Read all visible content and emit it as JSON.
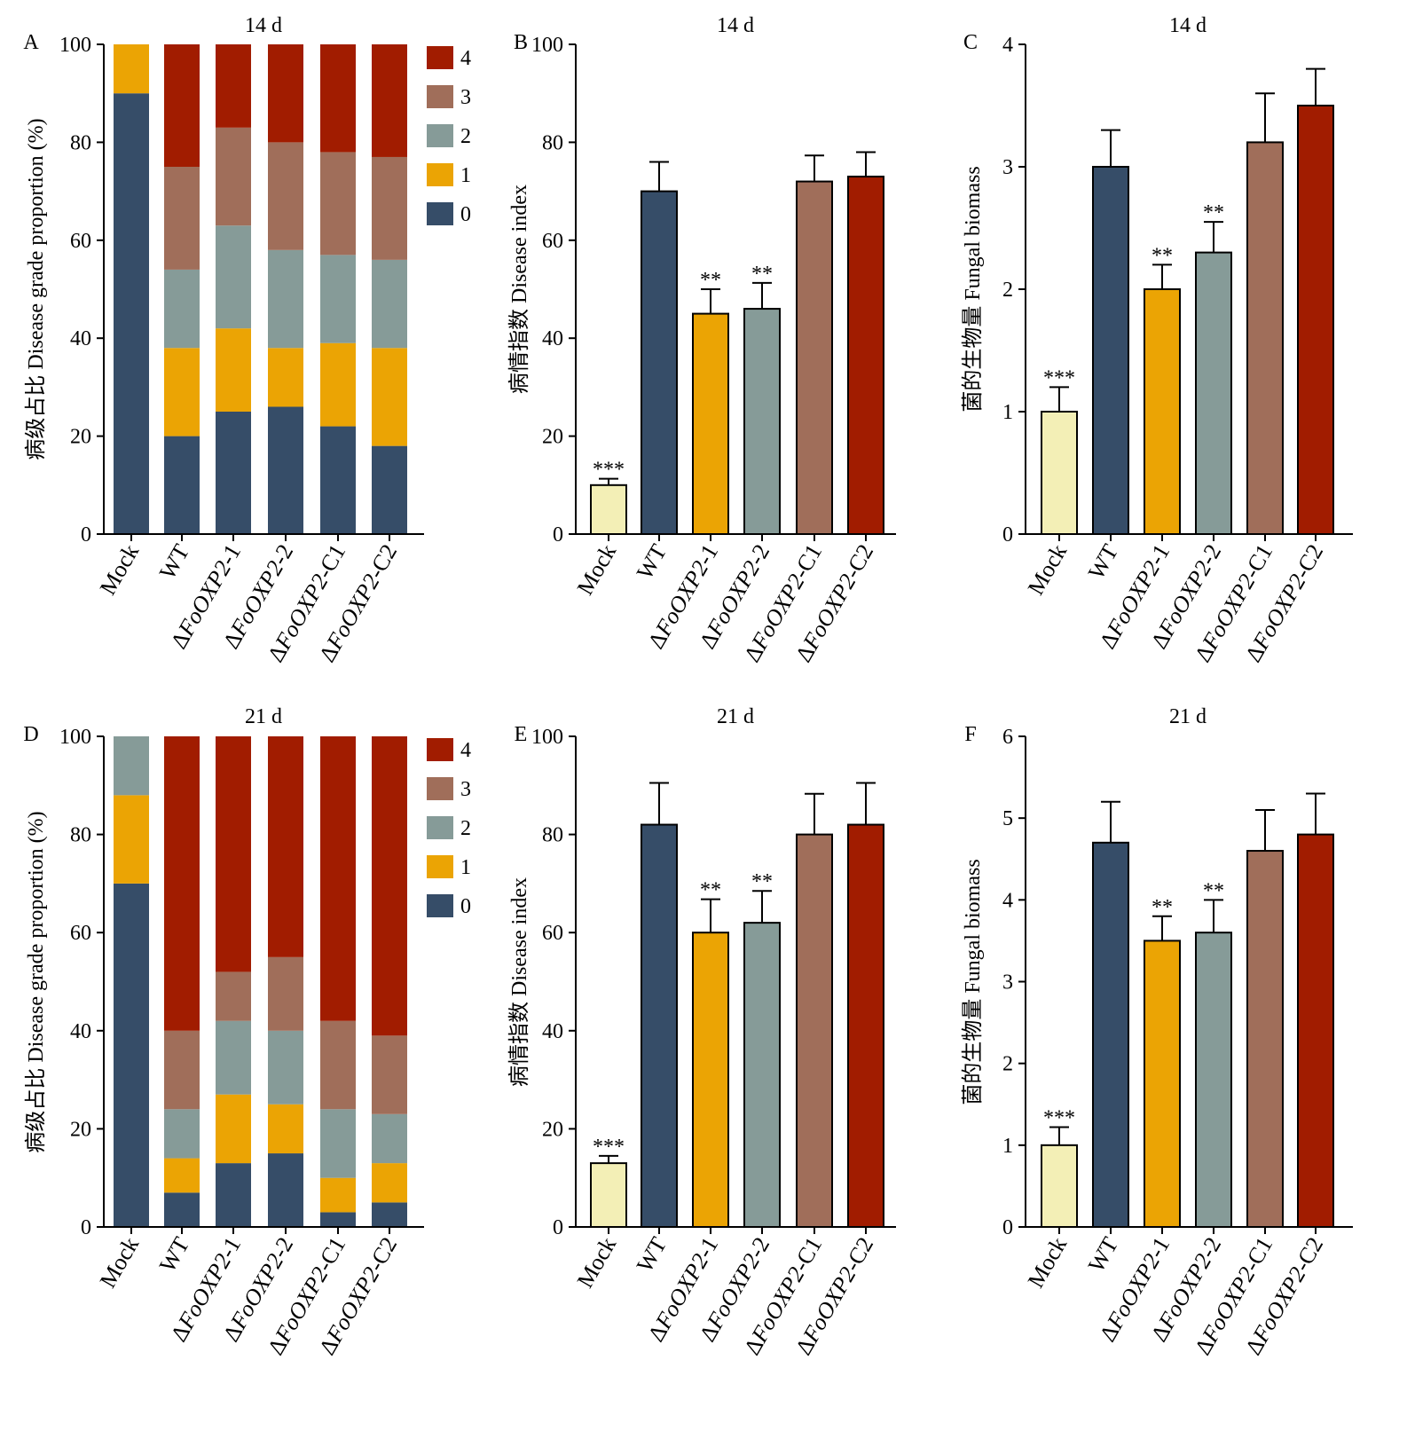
{
  "colors": {
    "grade0": "#364d68",
    "grade1": "#eba404",
    "grade2": "#869b98",
    "grade3": "#a06e5a",
    "grade4": "#a11c00",
    "mock": "#f3efb6",
    "wt": "#364d68",
    "ko1": "#eba404",
    "ko2": "#869b98",
    "c1": "#a06e5a",
    "c2": "#a11c00"
  },
  "chart_data": [
    {
      "id": "A",
      "panel_label": "A",
      "type": "bar",
      "stacked": true,
      "title": "14 d",
      "ylabel": "病级占比 Disease grade proportion (%)",
      "ylim": [
        0,
        100
      ],
      "yticks": [
        0,
        20,
        40,
        60,
        80,
        100
      ],
      "categories": [
        "Mock",
        "WT",
        "ΔFoOXP2-1",
        "ΔFoOXP2-2",
        "ΔFoOXP2-C1",
        "ΔFoOXP2-C2"
      ],
      "legend": [
        "4",
        "3",
        "2",
        "1",
        "0"
      ],
      "legend_position": "top-right",
      "series": [
        {
          "name": "0",
          "values": [
            90,
            20,
            25,
            26,
            22,
            18
          ]
        },
        {
          "name": "1",
          "values": [
            10,
            18,
            17,
            12,
            17,
            20
          ]
        },
        {
          "name": "2",
          "values": [
            0,
            16,
            21,
            20,
            18,
            18
          ]
        },
        {
          "name": "3",
          "values": [
            0,
            21,
            20,
            22,
            21,
            21
          ]
        },
        {
          "name": "4",
          "values": [
            0,
            25,
            17,
            20,
            22,
            23
          ]
        }
      ]
    },
    {
      "id": "B",
      "panel_label": "B",
      "type": "bar",
      "title": "14 d",
      "ylabel": "病情指数 Disease index",
      "ylim": [
        0,
        100
      ],
      "yticks": [
        0,
        20,
        40,
        60,
        80,
        100
      ],
      "categories": [
        "Mock",
        "WT",
        "ΔFoOXP2-1",
        "ΔFoOXP2-2",
        "ΔFoOXP2-C1",
        "ΔFoOXP2-C2"
      ],
      "values": [
        10,
        70,
        45,
        46,
        72,
        73
      ],
      "errors": [
        1.3,
        6,
        5,
        5.3,
        5.3,
        5
      ],
      "significance": [
        "***",
        "",
        "**",
        "**",
        "",
        ""
      ]
    },
    {
      "id": "C",
      "panel_label": "C",
      "type": "bar",
      "title": "14 d",
      "ylabel": "菌的生物量 Fungal biomass",
      "ylim": [
        0,
        4
      ],
      "yticks": [
        0,
        1,
        2,
        3,
        4
      ],
      "categories": [
        "Mock",
        "WT",
        "ΔFoOXP2-1",
        "ΔFoOXP2-2",
        "ΔFoOXP2-C1",
        "ΔFoOXP2-C2"
      ],
      "values": [
        1.0,
        3.0,
        2.0,
        2.3,
        3.2,
        3.5
      ],
      "errors": [
        0.2,
        0.3,
        0.2,
        0.25,
        0.4,
        0.3
      ],
      "significance": [
        "***",
        "",
        "**",
        "**",
        "",
        ""
      ]
    },
    {
      "id": "D",
      "panel_label": "D",
      "type": "bar",
      "stacked": true,
      "title": "21 d",
      "ylabel": "病级占比 Disease grade proportion (%)",
      "ylim": [
        0,
        100
      ],
      "yticks": [
        0,
        20,
        40,
        60,
        80,
        100
      ],
      "categories": [
        "Mock",
        "WT",
        "ΔFoOXP2-1",
        "ΔFoOXP2-2",
        "ΔFoOXP2-C1",
        "ΔFoOXP2-C2"
      ],
      "legend": [
        "4",
        "3",
        "2",
        "1",
        "0"
      ],
      "legend_position": "top-right",
      "series": [
        {
          "name": "0",
          "values": [
            70,
            7,
            13,
            15,
            3,
            5
          ]
        },
        {
          "name": "1",
          "values": [
            18,
            7,
            14,
            10,
            7,
            8
          ]
        },
        {
          "name": "2",
          "values": [
            12,
            10,
            15,
            15,
            14,
            10
          ]
        },
        {
          "name": "3",
          "values": [
            0,
            16,
            10,
            15,
            18,
            16
          ]
        },
        {
          "name": "4",
          "values": [
            0,
            60,
            48,
            45,
            58,
            61
          ]
        }
      ]
    },
    {
      "id": "E",
      "panel_label": "E",
      "type": "bar",
      "title": "21 d",
      "ylabel": "病情指数 Disease index",
      "ylim": [
        0,
        100
      ],
      "yticks": [
        0,
        20,
        40,
        60,
        80,
        100
      ],
      "categories": [
        "Mock",
        "WT",
        "ΔFoOXP2-1",
        "ΔFoOXP2-2",
        "ΔFoOXP2-C1",
        "ΔFoOXP2-C2"
      ],
      "values": [
        13,
        82,
        60,
        62,
        80,
        82
      ],
      "errors": [
        1.5,
        8.5,
        6.8,
        6.5,
        8.3,
        8.5
      ],
      "significance": [
        "***",
        "",
        "**",
        "**",
        "",
        ""
      ]
    },
    {
      "id": "F",
      "panel_label": "F",
      "type": "bar",
      "title": "21 d",
      "ylabel": "菌的生物量 Fungal biomass",
      "ylim": [
        0,
        6
      ],
      "yticks": [
        0,
        1,
        2,
        3,
        4,
        5,
        6
      ],
      "categories": [
        "Mock",
        "WT",
        "ΔFoOXP2-1",
        "ΔFoOXP2-2",
        "ΔFoOXP2-C1",
        "ΔFoOXP2-C2"
      ],
      "values": [
        1.0,
        4.7,
        3.5,
        3.6,
        4.6,
        4.8
      ],
      "errors": [
        0.22,
        0.5,
        0.3,
        0.4,
        0.5,
        0.5
      ],
      "significance": [
        "***",
        "",
        "**",
        "**",
        "",
        ""
      ]
    }
  ]
}
